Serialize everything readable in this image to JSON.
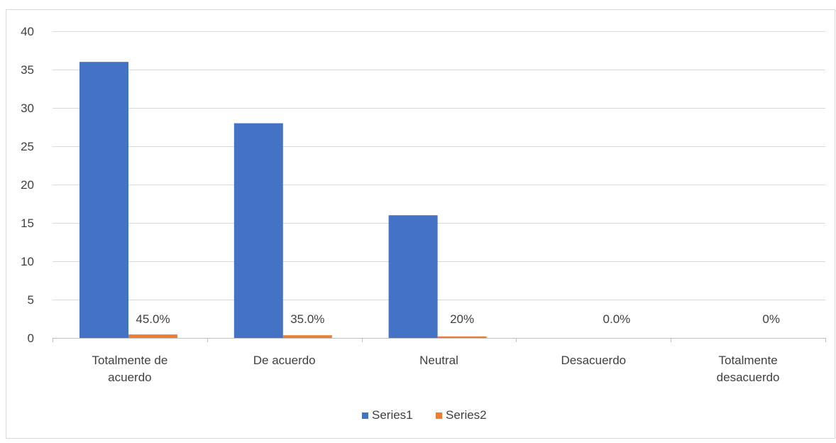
{
  "chart_data": {
    "type": "bar",
    "categories": [
      "Totalmente de acuerdo",
      "De acuerdo",
      "Neutral",
      "Desacuerdo",
      "Totalmente desacuerdo"
    ],
    "category_label_lines": [
      [
        "Totalmente de",
        "acuerdo"
      ],
      [
        "De acuerdo"
      ],
      [
        "Neutral"
      ],
      [
        "Desacuerdo"
      ],
      [
        "Totalmente",
        "desacuerdo"
      ]
    ],
    "series": [
      {
        "name": "Series1",
        "values": [
          36,
          28,
          16,
          0,
          0
        ],
        "color": "#4472c4"
      },
      {
        "name": "Series2",
        "values": [
          0.45,
          0.35,
          0.2,
          0,
          0
        ],
        "color": "#ed7d31",
        "data_labels": [
          "45.0%",
          "35.0%",
          "20%",
          "0.0%",
          "0%"
        ]
      }
    ],
    "ylim": [
      0,
      40
    ],
    "yticks": [
      0,
      5,
      10,
      15,
      20,
      25,
      30,
      35,
      40
    ],
    "grid": true,
    "legend_position": "bottom",
    "title": "",
    "xlabel": "",
    "ylabel": ""
  },
  "colors": {
    "gridline": "#d9d9d9",
    "axis": "#bfbfbf",
    "text": "#404040",
    "border": "#d9d9d9"
  }
}
